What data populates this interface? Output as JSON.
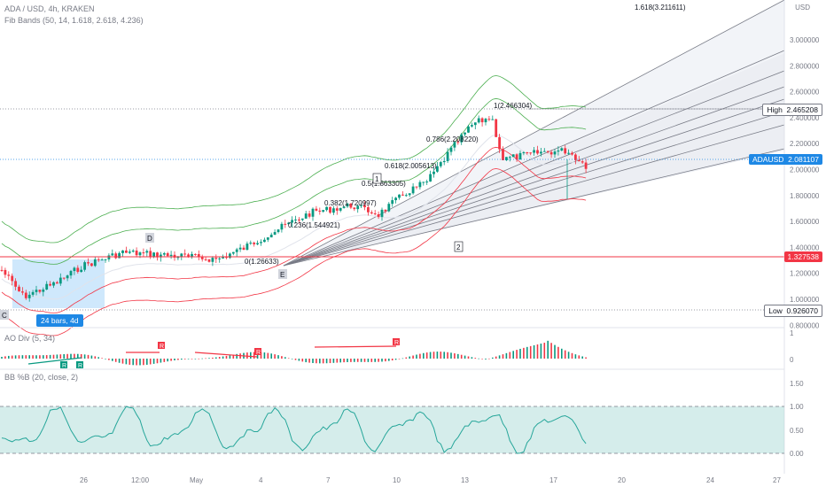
{
  "header": {
    "symbol": "ADA / USD, 4h, KRAKEN",
    "indicator": "Fib Bands (50, 14, 1.618, 2.618, 4.236)",
    "currency": "USD"
  },
  "panes": {
    "ao": "AO Div (5, 34)",
    "bb": "BB %B (20, close, 2)"
  },
  "price_axis": [
    "3.000000",
    "2.800000",
    "2.600000",
    "2.400000",
    "2.200000",
    "2.000000",
    "1.800000",
    "1.600000",
    "1.400000",
    "1.200000",
    "1.000000",
    "0.800000"
  ],
  "ao_axis": [
    "1",
    "0"
  ],
  "bb_axis": [
    "1.50",
    "1.00",
    "0.50",
    "0.00"
  ],
  "time_axis": [
    "26",
    "12:00",
    "May",
    "4",
    "7",
    "10",
    "13",
    "17",
    "20",
    "24",
    "27"
  ],
  "tags": {
    "high_label": "High",
    "high_value": "2.465208",
    "ada_label": "ADAUSD",
    "ada_value": "2.081107",
    "red_value": "1.327538",
    "low_label": "Low",
    "low_value": "0.926070"
  },
  "fib_labels": [
    "1.618(3.211611)",
    "1(2.466304)",
    "0.786(2.208220)",
    "0.618(2.005613)",
    "0.5(1.863305)",
    "0.382(1.720997)",
    "0.236(1.544921)",
    "0(1.26633)"
  ],
  "waves": [
    "D",
    "C",
    "E",
    "1",
    "2"
  ],
  "bars_range": "24 bars, 4d",
  "ao_markers": [
    "R",
    "R",
    "R",
    "R",
    "R"
  ],
  "colors": {
    "up": "#089981",
    "down": "#f23645",
    "band_upper": "#4caf50",
    "band_lower": "#f23645",
    "basis": "#e0e3eb",
    "fib_line": "#131722",
    "bb_line": "#26a69a",
    "bb_fill": "#b2dfdb"
  }
}
